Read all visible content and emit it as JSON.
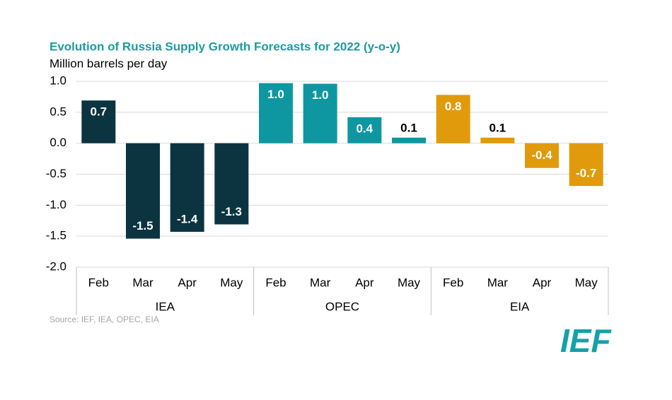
{
  "chart_data": {
    "type": "bar",
    "title": "Evolution of Russia Supply Growth Forecasts for 2022 (y-o-y)",
    "subtitle": "Million barrels per day",
    "source": "Source: IEF, IEA, OPEC, EIA",
    "logo": "IEF",
    "ylim": [
      -2.0,
      1.0
    ],
    "yticks": [
      {
        "value": 1.0,
        "label": "1.0"
      },
      {
        "value": 0.5,
        "label": "0.5"
      },
      {
        "value": 0,
        "label": "0.0"
      },
      {
        "value": -0.5,
        "label": "-0.5"
      },
      {
        "value": -1.0,
        "label": "-1.0"
      },
      {
        "value": -1.5,
        "label": "-1.5"
      },
      {
        "value": -2.0,
        "label": "-2.0"
      }
    ],
    "grid": true,
    "groups": [
      {
        "name": "IEA",
        "color": "#0b3440",
        "categories": [
          "Feb",
          "Mar",
          "Apr",
          "May"
        ],
        "values": [
          0.69,
          -1.54,
          -1.43,
          -1.31
        ],
        "value_labels": [
          "0.7",
          "-1.5",
          "-1.4",
          "-1.3"
        ]
      },
      {
        "name": "OPEC",
        "color": "#0f97a1",
        "categories": [
          "Feb",
          "Mar",
          "Apr",
          "May"
        ],
        "values": [
          0.97,
          0.96,
          0.42,
          0.09
        ],
        "value_labels": [
          "1.0",
          "1.0",
          "0.4",
          "0.1"
        ]
      },
      {
        "name": "EIA",
        "color": "#e09a0b",
        "categories": [
          "Feb",
          "Mar",
          "Apr",
          "May"
        ],
        "values": [
          0.78,
          0.09,
          -0.4,
          -0.69
        ],
        "value_labels": [
          "0.8",
          "0.1",
          "-0.4",
          "-0.7"
        ]
      }
    ]
  }
}
